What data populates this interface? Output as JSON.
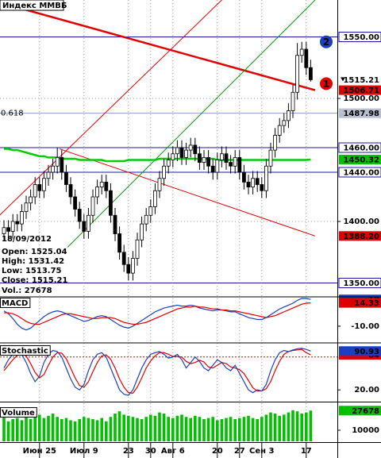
{
  "chart_data": [
    {
      "type": "candlestick",
      "title": "Индекс ММВБ",
      "categories": [
        null,
        null,
        null,
        null,
        null,
        null,
        null,
        null,
        "Июн 25",
        null,
        null,
        null,
        null,
        null,
        null,
        null,
        null,
        null,
        "Июл 9",
        null,
        null,
        null,
        null,
        null,
        null,
        null,
        null,
        null,
        "23",
        null,
        null,
        null,
        null,
        "30",
        null,
        null,
        null,
        null,
        "Авг 6",
        null,
        null,
        null,
        null,
        null,
        null,
        null,
        null,
        null,
        "20",
        null,
        null,
        null,
        null,
        "27",
        null,
        null,
        null,
        null,
        "Сен 3",
        null,
        null,
        null,
        null,
        null,
        null,
        null,
        null,
        null,
        "17",
        null
      ],
      "open": [
        1390,
        1395,
        1392,
        1400,
        1398,
        1408,
        1415,
        1420,
        1430,
        1425,
        1435,
        1440,
        1445,
        1452,
        1440,
        1430,
        1420,
        1410,
        1400,
        1392,
        1405,
        1420,
        1428,
        1432,
        1425,
        1405,
        1390,
        1375,
        1365,
        1358,
        1370,
        1385,
        1398,
        1405,
        1412,
        1425,
        1435,
        1445,
        1450,
        1455,
        1460,
        1452,
        1458,
        1462,
        1455,
        1448,
        1452,
        1445,
        1440,
        1450,
        1455,
        1448,
        1445,
        1452,
        1440,
        1432,
        1428,
        1435,
        1430,
        1425,
        1445,
        1458,
        1470,
        1478,
        1482,
        1490,
        1505,
        1535,
        1540,
        1525.04
      ],
      "high": [
        1401,
        1401,
        1406,
        1406,
        1414,
        1421,
        1426,
        1436,
        1436,
        1441,
        1446,
        1451,
        1460,
        1458,
        1446,
        1436,
        1426,
        1416,
        1406,
        1411,
        1426,
        1434,
        1438,
        1438,
        1431,
        1411,
        1396,
        1381,
        1371,
        1376,
        1391,
        1404,
        1411,
        1418,
        1431,
        1441,
        1451,
        1456,
        1461,
        1466,
        1466,
        1464,
        1468,
        1468,
        1461,
        1458,
        1458,
        1451,
        1456,
        1461,
        1461,
        1454,
        1458,
        1458,
        1446,
        1438,
        1441,
        1441,
        1436,
        1451,
        1464,
        1476,
        1484,
        1488,
        1496,
        1511,
        1545,
        1546,
        1546,
        1531.42
      ],
      "low": [
        1384,
        1386,
        1386,
        1392,
        1392,
        1402,
        1409,
        1414,
        1419,
        1419,
        1429,
        1434,
        1439,
        1434,
        1424,
        1414,
        1404,
        1394,
        1386,
        1386,
        1399,
        1414,
        1422,
        1419,
        1399,
        1384,
        1369,
        1359,
        1352,
        1352,
        1364,
        1379,
        1392,
        1399,
        1406,
        1419,
        1429,
        1439,
        1444,
        1449,
        1446,
        1446,
        1452,
        1449,
        1442,
        1442,
        1439,
        1434,
        1434,
        1444,
        1442,
        1439,
        1439,
        1434,
        1426,
        1422,
        1422,
        1424,
        1419,
        1419,
        1439,
        1452,
        1464,
        1472,
        1476,
        1484,
        1499,
        1529,
        1519,
        1513.75
      ],
      "close": [
        1395,
        1392,
        1400,
        1398,
        1408,
        1415,
        1420,
        1430,
        1425,
        1435,
        1440,
        1445,
        1452,
        1440,
        1430,
        1420,
        1410,
        1400,
        1392,
        1405,
        1420,
        1428,
        1432,
        1425,
        1405,
        1390,
        1375,
        1365,
        1358,
        1370,
        1385,
        1398,
        1405,
        1412,
        1425,
        1435,
        1445,
        1450,
        1455,
        1460,
        1452,
        1458,
        1462,
        1455,
        1448,
        1452,
        1445,
        1440,
        1450,
        1455,
        1448,
        1445,
        1452,
        1440,
        1432,
        1428,
        1435,
        1430,
        1425,
        1445,
        1458,
        1470,
        1478,
        1482,
        1490,
        1505,
        1535,
        1540,
        1525,
        1515.21
      ],
      "ma": {
        "color": "#00cc00",
        "values": [
          1459,
          1459,
          1458,
          1458,
          1457,
          1456,
          1455,
          1454,
          1453,
          1453,
          1452,
          1452,
          1452,
          1451,
          1451,
          1451,
          1451,
          1450,
          1450,
          1450,
          1450,
          1450,
          1450,
          1449,
          1449,
          1449,
          1449,
          1449,
          1450,
          1450,
          1450,
          1450,
          1450,
          1450,
          1450,
          1451,
          1451,
          1451,
          1451,
          1451,
          1451,
          1451,
          1451,
          1451,
          1451,
          1451,
          1451,
          1451,
          1450,
          1450,
          1450,
          1450,
          1450,
          1450,
          1450,
          1450,
          1450,
          1450,
          1450,
          1450,
          1450,
          1450,
          1450,
          1450,
          1450,
          1450,
          1450,
          1450,
          1450,
          1450.32
        ],
        "value_label": "1450.32"
      },
      "ylim": [
        1340,
        1580
      ],
      "yticks": [
        {
          "value": 1500,
          "label": "1500.00"
        },
        {
          "value": 1400,
          "label": "1400.00"
        }
      ],
      "grid": true,
      "levels": [
        {
          "value": 1550,
          "label": "1550.00"
        },
        {
          "value": 1460,
          "label": "1460.00"
        },
        {
          "value": 1440,
          "label": "1440.00"
        },
        {
          "value": 1350,
          "label": "1350.00"
        }
      ],
      "level_color": "#1a1aa0",
      "fib": {
        "value": 1487.98,
        "label": "0.618",
        "color": "#8a9ec8"
      },
      "trend_lines": [
        {
          "color": "#e00000",
          "width": 2.5,
          "x": [
            -1,
            70
          ],
          "y": [
            1578,
            1506.71
          ],
          "label": "1506.71"
        },
        {
          "color": "#e00000",
          "width": 1,
          "x": [
            12.5,
            70
          ],
          "y": [
            1459,
            1388.2
          ],
          "label": "1388.20"
        },
        {
          "color": "#e00000",
          "width": 1,
          "x": [
            -1,
            49
          ],
          "y": [
            1405,
            1580
          ]
        },
        {
          "color": "#00a000",
          "width": 1,
          "x": [
            14.3,
            70
          ],
          "y": [
            1379,
            1580
          ]
        }
      ],
      "markers": [
        {
          "label": "1",
          "color": "#e00000",
          "y": 1512
        },
        {
          "label": "2",
          "color": "#1a3fbf",
          "y": 1546
        }
      ],
      "info": {
        "date": "18/09/2012",
        "open": "Open:",
        "high": "High:",
        "low": "Low:",
        "close": "Close:",
        "volume": "Vol.:"
      }
    },
    {
      "type": "line",
      "title": "MACD",
      "ylim": [
        -25,
        19
      ],
      "yticks": [
        {
          "value": -10,
          "label": "-10.00"
        }
      ],
      "series": [
        {
          "color": "#1a3fbf",
          "values": [
            6,
            3,
            -2,
            -8,
            -12,
            -14,
            -12,
            -8,
            -4,
            0,
            3,
            5,
            6,
            5,
            3,
            1,
            -1,
            -3,
            -5,
            -4,
            -2,
            0,
            1,
            0,
            -3,
            -6,
            -9,
            -11,
            -12,
            -10,
            -7,
            -4,
            -1,
            2,
            5,
            7,
            9,
            10,
            11,
            12,
            11,
            11,
            12,
            11,
            9,
            8,
            7,
            6,
            7,
            7,
            6,
            5,
            5,
            3,
            1,
            -1,
            -2,
            -3,
            -3,
            -1,
            2,
            5,
            8,
            10,
            12,
            14,
            17,
            19,
            19,
            18
          ]
        },
        {
          "color": "#e00000",
          "values": [
            4,
            4,
            3,
            1,
            -2,
            -5,
            -7,
            -8,
            -8,
            -6,
            -4,
            -2,
            0,
            2,
            3,
            3,
            2,
            1,
            0,
            -1,
            -2,
            -2,
            -1,
            -1,
            -1,
            -2,
            -4,
            -6,
            -7,
            -8,
            -8,
            -7,
            -6,
            -4,
            -2,
            0,
            2,
            4,
            6,
            8,
            9,
            10,
            10,
            11,
            10,
            10,
            9,
            8,
            8,
            7,
            7,
            6,
            6,
            5,
            4,
            3,
            2,
            1,
            0,
            -1,
            0,
            1,
            3,
            5,
            7,
            9,
            11,
            13,
            14,
            14.33
          ]
        }
      ]
    },
    {
      "type": "line",
      "title": "Stochastic",
      "ylim": [
        0,
        100
      ],
      "yticks": [
        {
          "value": 20,
          "label": "20.00"
        }
      ],
      "ref_lines": [
        80
      ],
      "series": [
        {
          "color": "#e00000",
          "values": [
            55,
            65,
            75,
            83,
            86,
            82,
            68,
            52,
            42,
            48,
            65,
            80,
            88,
            87,
            77,
            60,
            42,
            28,
            25,
            35,
            53,
            70,
            82,
            84,
            76,
            60,
            40,
            25,
            15,
            14,
            25,
            42,
            60,
            73,
            82,
            88,
            88,
            85,
            81,
            81,
            80,
            72,
            68,
            70,
            74,
            71,
            62,
            60,
            65,
            70,
            68,
            62,
            60,
            57,
            50,
            37,
            24,
            18,
            18,
            22,
            35,
            55,
            72,
            85,
            90,
            92,
            93,
            94,
            88,
            84
          ]
        },
        {
          "color": "#1a3fbf",
          "values": [
            60,
            75,
            85,
            88,
            85,
            70,
            50,
            35,
            45,
            70,
            85,
            92,
            90,
            80,
            60,
            40,
            25,
            20,
            30,
            55,
            75,
            85,
            88,
            80,
            60,
            40,
            20,
            12,
            10,
            20,
            40,
            60,
            75,
            85,
            88,
            90,
            85,
            78,
            80,
            85,
            75,
            60,
            70,
            80,
            72,
            60,
            55,
            65,
            75,
            70,
            60,
            55,
            65,
            50,
            35,
            20,
            15,
            20,
            18,
            30,
            55,
            75,
            88,
            92,
            90,
            93,
            95,
            96,
            94,
            90.93
          ]
        }
      ]
    },
    {
      "type": "bar",
      "title": "Volume",
      "color": "#00c000",
      "ylim": [
        0,
        30000
      ],
      "yticks": [
        10000
      ],
      "values": [
        22000,
        18000,
        20000,
        21000,
        19000,
        23000,
        20000,
        22000,
        24000,
        21000,
        23000,
        25000,
        22000,
        20000,
        21000,
        19000,
        18000,
        20000,
        22000,
        21000,
        20000,
        19000,
        21000,
        18000,
        22000,
        25000,
        27000,
        24000,
        23000,
        22000,
        21000,
        20000,
        22000,
        24000,
        23000,
        26000,
        25000,
        22000,
        21000,
        23000,
        24000,
        22000,
        21000,
        23000,
        22000,
        20000,
        21000,
        22000,
        19000,
        20000,
        21000,
        22000,
        20000,
        21000,
        22000,
        23000,
        21000,
        20000,
        22000,
        24000,
        26000,
        25000,
        23000,
        24000,
        26000,
        28000,
        27000,
        25000,
        26000,
        27678
      ]
    }
  ]
}
